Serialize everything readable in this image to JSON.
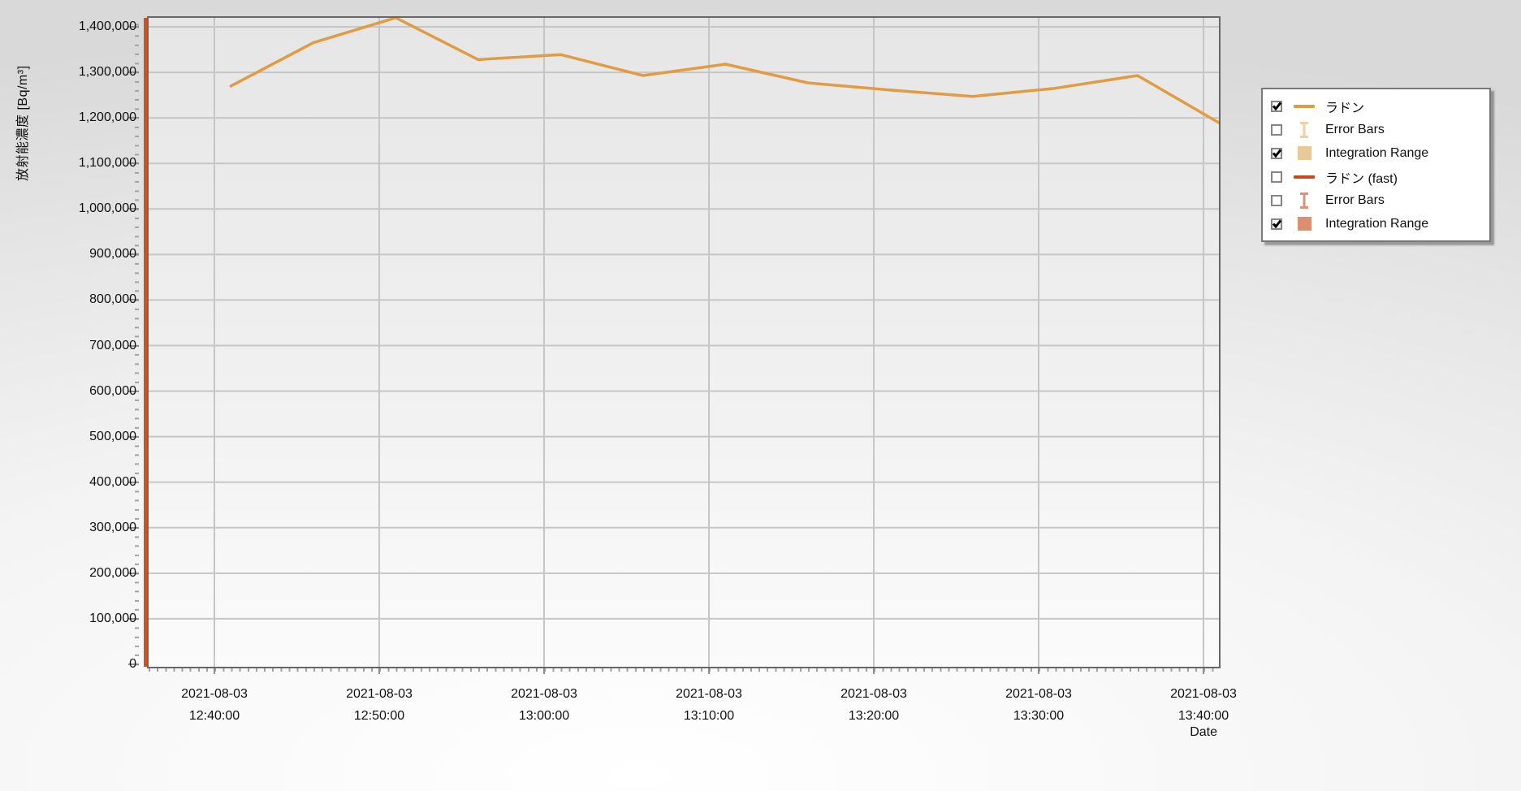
{
  "y_axis": {
    "title": "放射能濃度 [Bq/m³]",
    "tick_min": 0,
    "tick_max": 1400000,
    "tick_step": 100000
  },
  "x_axis": {
    "title": "Date",
    "date": "2021-08-03",
    "tick_times": [
      "12:40:00",
      "12:50:00",
      "13:00:00",
      "13:10:00",
      "13:20:00",
      "13:30:00",
      "13:40:00"
    ]
  },
  "legend": {
    "items": [
      {
        "id": "radon",
        "label": "ラドン",
        "checked": true,
        "swatch": "line",
        "color": "#e19c43"
      },
      {
        "id": "error-bars-slow",
        "label": "Error Bars",
        "checked": false,
        "swatch": "errorbar",
        "color": "#f0d0a0"
      },
      {
        "id": "integration-range-slow",
        "label": "Integration Range",
        "checked": true,
        "swatch": "square",
        "color": "#eac999"
      },
      {
        "id": "radon-fast",
        "label": "ラドン (fast)",
        "checked": false,
        "swatch": "line",
        "color": "#c8491f"
      },
      {
        "id": "error-bars-fast",
        "label": "Error Bars",
        "checked": false,
        "swatch": "errorbar",
        "color": "#de9377"
      },
      {
        "id": "integration-range-fast",
        "label": "Integration Range",
        "checked": true,
        "swatch": "square",
        "color": "#db8f6f"
      }
    ]
  },
  "chart_data": {
    "type": "line",
    "title": "",
    "xlabel": "Date",
    "ylabel": "放射能濃度 [Bq/m³]",
    "x_date": "2021-08-03",
    "x_tick_times": [
      "12:40:00",
      "12:50:00",
      "13:00:00",
      "13:10:00",
      "13:20:00",
      "13:30:00",
      "13:40:00"
    ],
    "ylim": [
      0,
      1400000
    ],
    "y_tick_step": 100000,
    "grid": true,
    "legend_position": "right",
    "series": [
      {
        "name": "ラドン",
        "color": "#e19c43",
        "points": [
          [
            "12:41:00",
            1270000
          ],
          [
            "12:46:00",
            1365000
          ],
          [
            "12:51:00",
            1420000
          ],
          [
            "12:56:00",
            1328000
          ],
          [
            "13:01:00",
            1339000
          ],
          [
            "13:06:00",
            1293000
          ],
          [
            "13:11:00",
            1318000
          ],
          [
            "13:16:00",
            1277000
          ],
          [
            "13:21:00",
            1261000
          ],
          [
            "13:26:00",
            1247000
          ],
          [
            "13:31:00",
            1265000
          ],
          [
            "13:36:00",
            1293000
          ],
          [
            "13:41:00",
            1188000
          ]
        ]
      }
    ],
    "integration_band": {
      "color": "#d0521f",
      "position": "left-edge"
    },
    "gridline_color": "#c6c6c6",
    "plot_border_color": "#67676a"
  }
}
